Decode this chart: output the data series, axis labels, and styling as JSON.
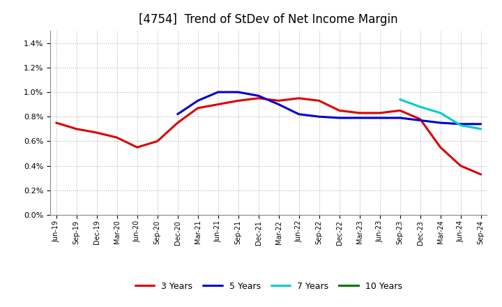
{
  "title": "[4754]  Trend of StDev of Net Income Margin",
  "title_fontsize": 12,
  "background_color": "#ffffff",
  "grid_color": "#aaaaaa",
  "ylim": [
    0.0,
    0.015
  ],
  "yticks": [
    0.0,
    0.002,
    0.004,
    0.006,
    0.008,
    0.01,
    0.012,
    0.014
  ],
  "x_labels": [
    "Jun-19",
    "Sep-19",
    "Dec-19",
    "Mar-20",
    "Jun-20",
    "Sep-20",
    "Dec-20",
    "Mar-21",
    "Jun-21",
    "Sep-21",
    "Dec-21",
    "Mar-22",
    "Jun-22",
    "Sep-22",
    "Dec-22",
    "Mar-23",
    "Jun-23",
    "Sep-23",
    "Dec-23",
    "Mar-24",
    "Jun-24",
    "Sep-24"
  ],
  "series_3y": [
    0.0075,
    0.007,
    0.0067,
    0.0063,
    0.0055,
    0.006,
    0.0075,
    0.0087,
    0.009,
    0.0093,
    0.0095,
    0.0093,
    0.0095,
    0.0093,
    0.0085,
    0.0083,
    0.0083,
    0.0085,
    0.0078,
    0.0055,
    0.004,
    0.0033
  ],
  "series_5y": [
    null,
    null,
    null,
    null,
    null,
    null,
    0.0082,
    0.0093,
    0.01,
    0.01,
    0.0097,
    0.009,
    0.0082,
    0.008,
    0.0079,
    0.0079,
    0.0079,
    0.0079,
    0.0077,
    0.0075,
    0.0074,
    0.0074
  ],
  "series_7y": [
    null,
    null,
    null,
    null,
    null,
    null,
    null,
    null,
    null,
    null,
    null,
    null,
    null,
    null,
    null,
    null,
    null,
    0.0094,
    0.0088,
    0.0083,
    0.0073,
    0.007
  ],
  "series_10y": [
    null,
    null,
    null,
    null,
    null,
    null,
    null,
    null,
    null,
    null,
    null,
    null,
    null,
    null,
    null,
    null,
    null,
    null,
    null,
    null,
    null,
    null
  ],
  "color_3y": "#dd0000",
  "color_5y": "#0000cc",
  "color_7y": "#00cccc",
  "color_10y": "#007700",
  "legend_labels": [
    "3 Years",
    "5 Years",
    "7 Years",
    "10 Years"
  ],
  "line_width": 2.2
}
